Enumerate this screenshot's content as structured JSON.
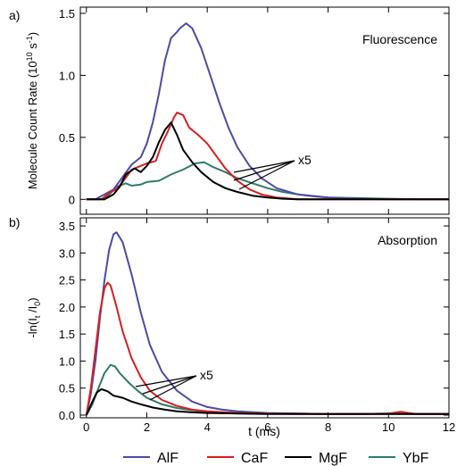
{
  "colors": {
    "AlF": "#4a4ba6",
    "CaF": "#d61f1f",
    "MgF": "#000000",
    "YbF": "#2f7a6e"
  },
  "chart_data": [
    {
      "type": "line",
      "panel_label": "a)",
      "annotation": "Fluorescence",
      "multiplier_note": "x5",
      "ylabel_parts": [
        "Molecule Count Rate (10",
        "10",
        " s",
        "-1",
        ")"
      ],
      "xlim": [
        -0.2,
        12
      ],
      "ylim": [
        -0.12,
        1.55
      ],
      "yticks": [
        0,
        0.5,
        1.0,
        1.5
      ],
      "ytick_labels": [
        "0",
        "0.5",
        "1.0",
        "1.5"
      ],
      "series": [
        {
          "name": "AlF",
          "x": [
            0,
            0.3,
            0.6,
            0.9,
            1.2,
            1.5,
            1.8,
            2.0,
            2.2,
            2.4,
            2.6,
            2.8,
            3.0,
            3.1,
            3.3,
            3.5,
            3.8,
            4.1,
            4.4,
            4.7,
            5.0,
            5.4,
            5.8,
            6.3,
            7.0,
            8.0,
            9.0,
            10.0,
            11.0,
            12.0
          ],
          "y": [
            0.0,
            0.0,
            0.04,
            0.08,
            0.18,
            0.28,
            0.34,
            0.45,
            0.62,
            0.85,
            1.12,
            1.3,
            1.35,
            1.38,
            1.42,
            1.38,
            1.22,
            1.0,
            0.78,
            0.58,
            0.42,
            0.27,
            0.17,
            0.09,
            0.04,
            0.015,
            0.005,
            0.0,
            0.0,
            0.0
          ]
        },
        {
          "name": "CaF",
          "x": [
            0,
            0.5,
            0.8,
            1.0,
            1.2,
            1.5,
            1.8,
            2.0,
            2.3,
            2.5,
            2.7,
            2.9,
            3.0,
            3.2,
            3.4,
            3.7,
            4.0,
            4.3,
            4.6,
            5.0,
            5.4,
            5.8,
            6.3,
            7.0,
            8.0,
            9.0,
            10.0,
            12.0
          ],
          "y": [
            0.0,
            0.0,
            0.06,
            0.08,
            0.14,
            0.24,
            0.27,
            0.29,
            0.31,
            0.45,
            0.55,
            0.66,
            0.7,
            0.68,
            0.58,
            0.52,
            0.45,
            0.35,
            0.25,
            0.15,
            0.08,
            0.04,
            0.015,
            0.0,
            0.0,
            0.0,
            0.0,
            0.0
          ]
        },
        {
          "name": "MgF",
          "x": [
            0,
            0.6,
            0.9,
            1.1,
            1.3,
            1.6,
            1.8,
            2.0,
            2.2,
            2.4,
            2.6,
            2.8,
            3.0,
            3.2,
            3.5,
            3.8,
            4.2,
            4.6,
            5.0,
            5.5,
            6.0,
            6.5,
            7.0,
            8.0,
            9.0,
            10.0,
            12.0
          ],
          "y": [
            0.0,
            0.0,
            0.04,
            0.1,
            0.2,
            0.25,
            0.22,
            0.27,
            0.34,
            0.46,
            0.56,
            0.62,
            0.52,
            0.4,
            0.3,
            0.22,
            0.14,
            0.09,
            0.06,
            0.03,
            0.015,
            0.005,
            0.0,
            0.0,
            0.0,
            0.0,
            0.0
          ]
        },
        {
          "name": "YbF",
          "x": [
            0,
            0.6,
            0.8,
            1.0,
            1.3,
            1.5,
            1.8,
            2.0,
            2.4,
            2.8,
            3.2,
            3.6,
            3.9,
            4.2,
            4.6,
            5.0,
            5.5,
            6.0,
            6.5,
            7.0,
            7.5,
            8.0,
            9.0,
            10.0,
            11.0,
            12.0
          ],
          "y": [
            0.0,
            0.0,
            0.05,
            0.1,
            0.13,
            0.11,
            0.12,
            0.14,
            0.15,
            0.2,
            0.24,
            0.29,
            0.3,
            0.26,
            0.22,
            0.17,
            0.13,
            0.09,
            0.06,
            0.04,
            0.025,
            0.015,
            0.01,
            0.005,
            0.0,
            0.0
          ]
        }
      ]
    },
    {
      "type": "line",
      "panel_label": "b)",
      "annotation": "Absorption",
      "multiplier_note": "x5",
      "ylabel_parts": [
        "-ln(I",
        "t",
        " /I",
        "0",
        ")"
      ],
      "xlabel": "t (ms)",
      "xlim": [
        -0.2,
        12
      ],
      "ylim": [
        -0.05,
        3.65
      ],
      "xticks": [
        0,
        2,
        4,
        6,
        8,
        10,
        12
      ],
      "xtick_labels": [
        "0",
        "2",
        "4",
        "6",
        "8",
        "10",
        "12"
      ],
      "yticks": [
        0,
        0.5,
        1.0,
        1.5,
        2.0,
        2.5,
        3.0,
        3.5
      ],
      "ytick_labels": [
        "0.0",
        "0.5",
        "1.0",
        "1.5",
        "2.0",
        "2.5",
        "3.0",
        "3.5"
      ],
      "series": [
        {
          "name": "AlF",
          "x": [
            0,
            0.15,
            0.3,
            0.45,
            0.6,
            0.75,
            0.9,
            1.0,
            1.2,
            1.5,
            1.8,
            2.1,
            2.5,
            3.0,
            3.5,
            4.0,
            4.5,
            5.0,
            6.0,
            7.0,
            8.0,
            9.0,
            10.0,
            11.0,
            12.0
          ],
          "y": [
            0.0,
            0.4,
            1.0,
            1.8,
            2.5,
            3.05,
            3.35,
            3.38,
            3.2,
            2.6,
            1.9,
            1.3,
            0.8,
            0.45,
            0.25,
            0.15,
            0.1,
            0.07,
            0.04,
            0.03,
            0.02,
            0.02,
            0.02,
            0.02,
            0.02
          ]
        },
        {
          "name": "CaF",
          "x": [
            0,
            0.15,
            0.3,
            0.45,
            0.6,
            0.7,
            0.8,
            1.0,
            1.2,
            1.5,
            1.8,
            2.1,
            2.5,
            3.0,
            3.5,
            4.0,
            5.0,
            6.0,
            7.0,
            8.0,
            9.0,
            10.0,
            10.4,
            10.8,
            11.0,
            12.0
          ],
          "y": [
            0.0,
            0.5,
            1.2,
            1.9,
            2.35,
            2.45,
            2.4,
            2.0,
            1.55,
            1.05,
            0.7,
            0.45,
            0.28,
            0.17,
            0.1,
            0.07,
            0.04,
            0.03,
            0.02,
            0.02,
            0.02,
            0.03,
            0.06,
            0.03,
            0.02,
            0.02
          ]
        },
        {
          "name": "MgF",
          "x": [
            0,
            0.2,
            0.35,
            0.5,
            0.7,
            0.9,
            1.2,
            1.5,
            1.8,
            2.2,
            2.6,
            3.0,
            3.5,
            4.0,
            5.0,
            6.0,
            7.0,
            8.0,
            9.0,
            10.0,
            11.0,
            12.0
          ],
          "y": [
            0.0,
            0.25,
            0.42,
            0.48,
            0.44,
            0.36,
            0.32,
            0.25,
            0.2,
            0.14,
            0.1,
            0.07,
            0.05,
            0.04,
            0.03,
            0.02,
            0.02,
            0.02,
            0.02,
            0.02,
            0.02,
            0.02
          ]
        },
        {
          "name": "YbF",
          "x": [
            0,
            0.2,
            0.4,
            0.6,
            0.8,
            0.95,
            1.1,
            1.4,
            1.7,
            2.0,
            2.5,
            3.0,
            3.5,
            4.0,
            5.0,
            6.0,
            7.0,
            8.0,
            9.0,
            10.0,
            11.0,
            12.0
          ],
          "y": [
            0.0,
            0.2,
            0.5,
            0.78,
            0.93,
            0.9,
            0.78,
            0.6,
            0.45,
            0.32,
            0.2,
            0.13,
            0.09,
            0.06,
            0.04,
            0.03,
            0.03,
            0.02,
            0.02,
            0.03,
            0.02,
            0.02
          ]
        }
      ]
    }
  ],
  "legend": [
    "AlF",
    "CaF",
    "MgF",
    "YbF"
  ]
}
